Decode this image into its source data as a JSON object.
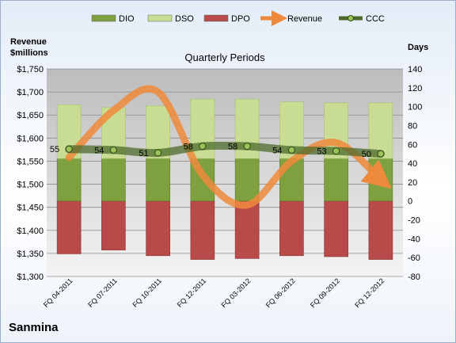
{
  "company": "Sanmina",
  "chart_data": {
    "type": "bar",
    "title": "Quarterly Periods",
    "y_left_label": [
      "Revenue",
      "$millions"
    ],
    "y_right_label": "Days",
    "categories": [
      "FQ 04-2011",
      "FQ 07-2011",
      "FQ 10-2011",
      "FQ 12-2011",
      "FQ 03-2012",
      "FQ 06-2012",
      "FQ 09-2012",
      "FQ 12-2012"
    ],
    "y_left": {
      "min": 1300,
      "max": 1750,
      "step": 50,
      "prefix": "$"
    },
    "y_right": {
      "min": -80,
      "max": 140,
      "step": 20
    },
    "series": [
      {
        "name": "DIO",
        "type": "bar",
        "axis": "right",
        "color": "#7ea03f",
        "values": [
          45,
          45,
          45,
          45,
          45,
          45,
          45,
          45
        ]
      },
      {
        "name": "DSO",
        "type": "bar",
        "axis": "right",
        "color": "#c8dc94",
        "values": [
          57,
          54,
          56,
          63,
          63,
          60,
          59,
          59
        ]
      },
      {
        "name": "DPO",
        "type": "bar",
        "axis": "right",
        "color": "#b94a4a",
        "values": [
          -56,
          -52,
          -58,
          -62,
          -61,
          -58,
          -59,
          -62
        ]
      },
      {
        "name": "Revenue",
        "type": "line",
        "axis": "left",
        "color": "#ee8a3c",
        "values": [
          1558,
          1660,
          1700,
          1520,
          1455,
          1550,
          1590,
          1510
        ]
      },
      {
        "name": "CCC",
        "type": "line",
        "axis": "right",
        "color": "#4d6b2c",
        "values": [
          55,
          54,
          51,
          58,
          58,
          54,
          53,
          50
        ]
      }
    ],
    "grid": true,
    "legend": "top"
  }
}
